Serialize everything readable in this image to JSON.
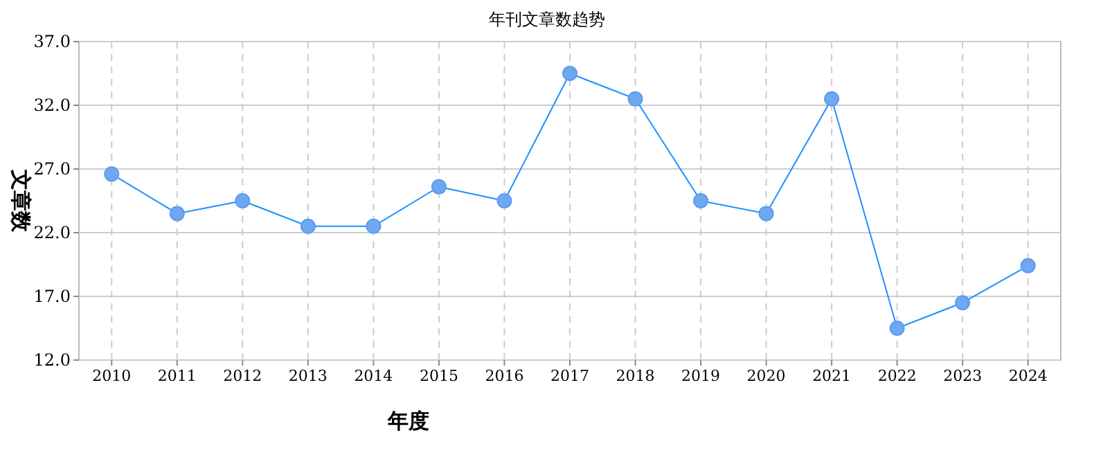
{
  "chart_data": {
    "type": "line",
    "title": "年刊文章数趋势",
    "xlabel": "年度",
    "ylabel": "文章数",
    "categories": [
      "2010",
      "2011",
      "2012",
      "2013",
      "2014",
      "2015",
      "2016",
      "2017",
      "2018",
      "2019",
      "2020",
      "2021",
      "2022",
      "2023",
      "2024"
    ],
    "series": [
      {
        "color": "#1e90ff",
        "values": [
          26.6,
          23.5,
          24.5,
          22.5,
          22.5,
          25.6,
          24.5,
          34.5,
          32.5,
          24.5,
          23.5,
          32.5,
          14.5,
          16.5,
          19.4
        ]
      }
    ],
    "ylim": [
      12,
      37
    ],
    "yticks": [
      {
        "value": 12,
        "label": "12.0"
      },
      {
        "value": 17,
        "label": "17.0"
      },
      {
        "value": 22,
        "label": "22.0"
      },
      {
        "value": 27,
        "label": "27.0"
      },
      {
        "value": 32,
        "label": "32.0"
      },
      {
        "value": 37,
        "label": "37.0"
      }
    ],
    "grid": true,
    "marker": "circle",
    "line_style": "solid"
  }
}
